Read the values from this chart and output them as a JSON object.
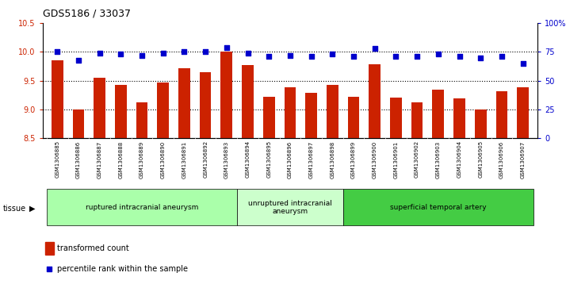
{
  "title": "GDS5186 / 33037",
  "samples": [
    "GSM1306885",
    "GSM1306886",
    "GSM1306887",
    "GSM1306888",
    "GSM1306889",
    "GSM1306890",
    "GSM1306891",
    "GSM1306892",
    "GSM1306893",
    "GSM1306894",
    "GSM1306895",
    "GSM1306896",
    "GSM1306897",
    "GSM1306898",
    "GSM1306899",
    "GSM1306900",
    "GSM1306901",
    "GSM1306902",
    "GSM1306903",
    "GSM1306904",
    "GSM1306905",
    "GSM1306906",
    "GSM1306907"
  ],
  "transformed_count": [
    9.85,
    9.0,
    9.55,
    9.43,
    9.13,
    9.47,
    9.72,
    9.65,
    10.0,
    9.77,
    9.22,
    9.38,
    9.29,
    9.43,
    9.22,
    9.78,
    9.2,
    9.13,
    9.35,
    9.19,
    9.0,
    9.32,
    9.38
  ],
  "percentile_rank": [
    75,
    68,
    74,
    73,
    72,
    74,
    75,
    75,
    79,
    74,
    71,
    72,
    71,
    73,
    71,
    78,
    71,
    71,
    73,
    71,
    70,
    71,
    65
  ],
  "ylim_left": [
    8.5,
    10.5
  ],
  "ylim_right": [
    0,
    100
  ],
  "yticks_left": [
    8.5,
    9.0,
    9.5,
    10.0,
    10.5
  ],
  "yticks_right": [
    0,
    25,
    50,
    75,
    100
  ],
  "ytick_labels_right": [
    "0",
    "25",
    "50",
    "75",
    "100%"
  ],
  "bar_color": "#cc2200",
  "dot_color": "#0000cc",
  "groups": [
    {
      "label": "ruptured intracranial aneurysm",
      "start": 0,
      "end": 9,
      "color": "#aaffaa"
    },
    {
      "label": "unruptured intracranial\naneurysm",
      "start": 9,
      "end": 14,
      "color": "#ccffcc"
    },
    {
      "label": "superficial temporal artery",
      "start": 14,
      "end": 23,
      "color": "#44cc44"
    }
  ],
  "tissue_label": "tissue",
  "legend_bar_label": "transformed count",
  "legend_dot_label": "percentile rank within the sample",
  "plot_bg_color": "#ffffff",
  "xtick_bg_color": "#d0d0d0",
  "title_fontsize": 9,
  "tick_fontsize": 7,
  "label_fontsize": 7
}
